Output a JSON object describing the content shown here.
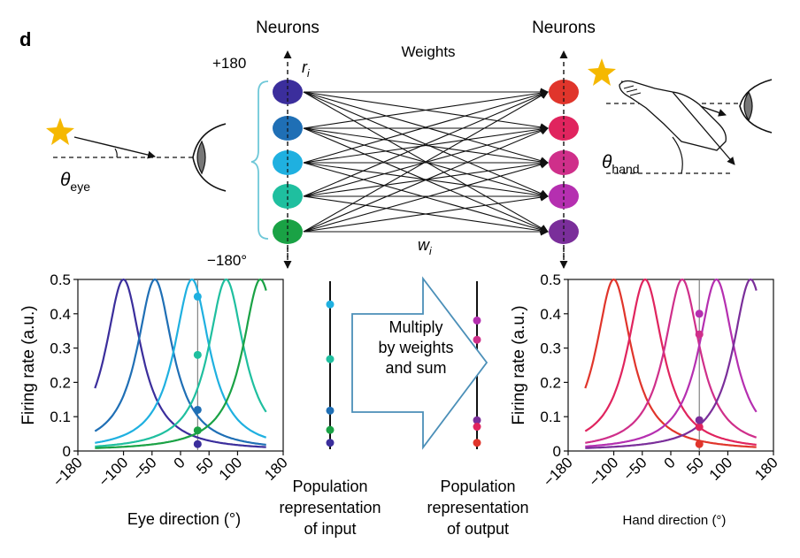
{
  "panel_label": "d",
  "network": {
    "input_header": "Neurons",
    "output_header": "Neurons",
    "weights_label": "Weights",
    "top_value": "+180",
    "bottom_value": "−180°",
    "r_label": "r",
    "r_sub": "i",
    "w_label": "w",
    "w_sub": "i",
    "input_colors": [
      "#3b2e9c",
      "#1f6fb5",
      "#1fb0e0",
      "#1fbf9f",
      "#1aa245"
    ],
    "output_colors": [
      "#e0352b",
      "#e0245e",
      "#cf2f8a",
      "#b52fb0",
      "#7a2e9a"
    ]
  },
  "eye": {
    "theta": "θ",
    "theta_sub": "eye",
    "star_color": "#f5b800"
  },
  "hand": {
    "theta": "θ",
    "theta_sub": "hand",
    "star_color": "#f5b800"
  },
  "arrow_text": [
    "Multiply",
    "by weights",
    "and sum"
  ],
  "arrow_color": "#4b8fb8",
  "pop_input_caption": [
    "Population",
    "representation",
    "of input"
  ],
  "pop_output_caption": [
    "Population",
    "representation",
    "of output"
  ],
  "chart_data": [
    {
      "type": "line",
      "xlabel": "Eye direction (°)",
      "ylabel": "Firing rate (a.u.)",
      "xlim": [
        -180,
        180
      ],
      "ylim": [
        0,
        0.5
      ],
      "x_ticks": [
        "−180",
        "−100",
        "−50",
        "0",
        "50",
        "100",
        "180"
      ],
      "x_tick_values": [
        -180,
        -100,
        -50,
        0,
        50,
        100,
        180
      ],
      "y_ticks": [
        "0",
        "0.1",
        "0.2",
        "0.3",
        "0.4",
        "0.5"
      ],
      "y_tick_values": [
        0,
        0.1,
        0.2,
        0.3,
        0.4,
        0.5
      ],
      "curve_x_range": [
        -150,
        150
      ],
      "curve_width": 38,
      "peak": 0.5,
      "vertical_line_x": 30,
      "series": [
        {
          "center": -100,
          "color": "#3b2e9c",
          "value_at_line": 0.02
        },
        {
          "center": -45,
          "color": "#1f6fb5",
          "value_at_line": 0.12
        },
        {
          "center": 20,
          "color": "#1fb0e0",
          "value_at_line": 0.45
        },
        {
          "center": 80,
          "color": "#1fbf9f",
          "value_at_line": 0.28
        },
        {
          "center": 140,
          "color": "#1aa245",
          "value_at_line": 0.06
        }
      ]
    },
    {
      "type": "scatter",
      "ylim": [
        0,
        0.5
      ],
      "points": [
        {
          "value": 0.45,
          "color": "#1fb0e0"
        },
        {
          "value": 0.28,
          "color": "#1fbf9f"
        },
        {
          "value": 0.12,
          "color": "#1f6fb5"
        },
        {
          "value": 0.06,
          "color": "#1aa245"
        },
        {
          "value": 0.02,
          "color": "#3b2e9c"
        }
      ]
    },
    {
      "type": "scatter",
      "ylim": [
        0,
        0.5
      ],
      "points": [
        {
          "value": 0.4,
          "color": "#b52fb0"
        },
        {
          "value": 0.34,
          "color": "#cf2f8a"
        },
        {
          "value": 0.09,
          "color": "#7a2e9a"
        },
        {
          "value": 0.07,
          "color": "#e0245e"
        },
        {
          "value": 0.02,
          "color": "#e0352b"
        }
      ]
    },
    {
      "type": "line",
      "xlabel": "Hand direction (°)",
      "ylabel": "Firing rate (a.u.)",
      "xlim": [
        -180,
        180
      ],
      "ylim": [
        0,
        0.5
      ],
      "x_ticks": [
        "−180",
        "−100",
        "−50",
        "0",
        "50",
        "100",
        "180"
      ],
      "x_tick_values": [
        -180,
        -100,
        -50,
        0,
        50,
        100,
        180
      ],
      "y_ticks": [
        "0",
        "0.1",
        "0.2",
        "0.3",
        "0.4",
        "0.5"
      ],
      "y_tick_values": [
        0,
        0.1,
        0.2,
        0.3,
        0.4,
        0.5
      ],
      "curve_x_range": [
        -150,
        150
      ],
      "curve_width": 38,
      "peak": 0.5,
      "vertical_line_x": 50,
      "series": [
        {
          "center": -100,
          "color": "#e0352b",
          "value_at_line": 0.02
        },
        {
          "center": -45,
          "color": "#e0245e",
          "value_at_line": 0.07
        },
        {
          "center": 20,
          "color": "#cf2f8a",
          "value_at_line": 0.34
        },
        {
          "center": 80,
          "color": "#b52fb0",
          "value_at_line": 0.4
        },
        {
          "center": 140,
          "color": "#7a2e9a",
          "value_at_line": 0.09
        }
      ]
    }
  ]
}
